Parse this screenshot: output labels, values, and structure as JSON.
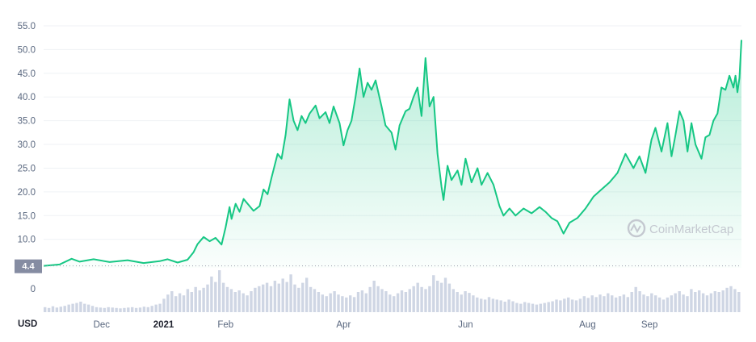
{
  "watermark": "CoinMarketCap",
  "currency_label": "USD",
  "colors": {
    "line": "#16c784",
    "area_top": "#16c784",
    "grid": "#eff2f5",
    "volume_bar": "#cfd6e4",
    "badge": "#858ca2"
  },
  "chart_data": {
    "type": "area",
    "title": "",
    "xlabel": "",
    "ylabel": "",
    "ylim": [
      4.0,
      55.0
    ],
    "yticks": [
      "55.0",
      "50.0",
      "45.0",
      "40.0",
      "35.0",
      "30.0",
      "25.0",
      "20.0",
      "15.0",
      "10.0"
    ],
    "current_price_label": "4.4",
    "x_tick_labels": [
      {
        "label": "Dec",
        "bold": false,
        "date": "2020-12-01"
      },
      {
        "label": "2021",
        "bold": true,
        "date": "2021-01-01"
      },
      {
        "label": "Feb",
        "bold": false,
        "date": "2021-02-01"
      },
      {
        "label": "Apr",
        "bold": false,
        "date": "2021-04-01"
      },
      {
        "label": "Jun",
        "bold": false,
        "date": "2021-06-01"
      },
      {
        "label": "Aug",
        "bold": false,
        "date": "2021-08-01"
      },
      {
        "label": "Sep",
        "bold": false,
        "date": "2021-09-01"
      }
    ],
    "x_start": "2020-11-02",
    "x_end": "2021-10-17",
    "series": [
      {
        "points": [
          [
            "2020-11-02",
            4.4
          ],
          [
            "2020-11-10",
            4.7
          ],
          [
            "2020-11-16",
            5.9
          ],
          [
            "2020-11-20",
            5.3
          ],
          [
            "2020-11-27",
            5.8
          ],
          [
            "2020-12-05",
            5.2
          ],
          [
            "2020-12-14",
            5.6
          ],
          [
            "2020-12-22",
            5.0
          ],
          [
            "2020-12-30",
            5.4
          ],
          [
            "2021-01-03",
            5.8
          ],
          [
            "2021-01-08",
            5.1
          ],
          [
            "2021-01-13",
            5.7
          ],
          [
            "2021-01-16",
            7.3
          ],
          [
            "2021-01-18",
            9.0
          ],
          [
            "2021-01-21",
            10.5
          ],
          [
            "2021-01-24",
            9.6
          ],
          [
            "2021-01-27",
            10.3
          ],
          [
            "2021-01-30",
            8.9
          ],
          [
            "2021-02-01",
            12.5
          ],
          [
            "2021-02-03",
            16.8
          ],
          [
            "2021-02-04",
            14.3
          ],
          [
            "2021-02-06",
            17.5
          ],
          [
            "2021-02-08",
            15.8
          ],
          [
            "2021-02-10",
            18.5
          ],
          [
            "2021-02-13",
            17.0
          ],
          [
            "2021-02-15",
            16.0
          ],
          [
            "2021-02-18",
            17.0
          ],
          [
            "2021-02-20",
            20.5
          ],
          [
            "2021-02-22",
            19.5
          ],
          [
            "2021-02-24",
            23.0
          ],
          [
            "2021-02-27",
            28.0
          ],
          [
            "2021-03-01",
            27.0
          ],
          [
            "2021-03-03",
            32.0
          ],
          [
            "2021-03-05",
            39.5
          ],
          [
            "2021-03-07",
            35.0
          ],
          [
            "2021-03-09",
            33.0
          ],
          [
            "2021-03-11",
            36.0
          ],
          [
            "2021-03-13",
            34.5
          ],
          [
            "2021-03-15",
            36.5
          ],
          [
            "2021-03-18",
            38.2
          ],
          [
            "2021-03-20",
            35.5
          ],
          [
            "2021-03-23",
            36.8
          ],
          [
            "2021-03-25",
            34.5
          ],
          [
            "2021-03-27",
            38.0
          ],
          [
            "2021-03-30",
            34.5
          ],
          [
            "2021-04-01",
            29.8
          ],
          [
            "2021-04-03",
            33.0
          ],
          [
            "2021-04-05",
            35.0
          ],
          [
            "2021-04-07",
            40.0
          ],
          [
            "2021-04-09",
            46.0
          ],
          [
            "2021-04-11",
            40.0
          ],
          [
            "2021-04-13",
            43.0
          ],
          [
            "2021-04-15",
            41.5
          ],
          [
            "2021-04-17",
            43.5
          ],
          [
            "2021-04-20",
            38.0
          ],
          [
            "2021-04-22",
            34.0
          ],
          [
            "2021-04-25",
            32.5
          ],
          [
            "2021-04-27",
            28.9
          ],
          [
            "2021-04-29",
            34.0
          ],
          [
            "2021-05-02",
            37.0
          ],
          [
            "2021-05-04",
            37.5
          ],
          [
            "2021-05-06",
            40.0
          ],
          [
            "2021-05-08",
            42.0
          ],
          [
            "2021-05-10",
            36.0
          ],
          [
            "2021-05-12",
            48.2
          ],
          [
            "2021-05-14",
            38.0
          ],
          [
            "2021-05-16",
            40.0
          ],
          [
            "2021-05-18",
            28.0
          ],
          [
            "2021-05-20",
            21.0
          ],
          [
            "2021-05-21",
            18.3
          ],
          [
            "2021-05-23",
            25.5
          ],
          [
            "2021-05-25",
            22.5
          ],
          [
            "2021-05-28",
            24.5
          ],
          [
            "2021-05-30",
            21.5
          ],
          [
            "2021-06-01",
            27.0
          ],
          [
            "2021-06-04",
            22.0
          ],
          [
            "2021-06-07",
            25.0
          ],
          [
            "2021-06-09",
            21.5
          ],
          [
            "2021-06-12",
            24.0
          ],
          [
            "2021-06-15",
            21.5
          ],
          [
            "2021-06-18",
            17.0
          ],
          [
            "2021-06-20",
            15.0
          ],
          [
            "2021-06-23",
            16.5
          ],
          [
            "2021-06-26",
            15.0
          ],
          [
            "2021-06-30",
            16.5
          ],
          [
            "2021-07-04",
            15.5
          ],
          [
            "2021-07-08",
            16.8
          ],
          [
            "2021-07-11",
            15.8
          ],
          [
            "2021-07-14",
            14.5
          ],
          [
            "2021-07-17",
            13.8
          ],
          [
            "2021-07-20",
            11.2
          ],
          [
            "2021-07-23",
            13.5
          ],
          [
            "2021-07-27",
            14.5
          ],
          [
            "2021-07-31",
            16.5
          ],
          [
            "2021-08-04",
            19.0
          ],
          [
            "2021-08-08",
            20.5
          ],
          [
            "2021-08-12",
            22.0
          ],
          [
            "2021-08-16",
            24.0
          ],
          [
            "2021-08-20",
            28.0
          ],
          [
            "2021-08-22",
            26.5
          ],
          [
            "2021-08-24",
            25.0
          ],
          [
            "2021-08-27",
            27.5
          ],
          [
            "2021-08-30",
            24.0
          ],
          [
            "2021-09-02",
            31.0
          ],
          [
            "2021-09-04",
            33.5
          ],
          [
            "2021-09-07",
            28.5
          ],
          [
            "2021-09-10",
            34.5
          ],
          [
            "2021-09-12",
            27.5
          ],
          [
            "2021-09-14",
            32.0
          ],
          [
            "2021-09-16",
            37.0
          ],
          [
            "2021-09-18",
            35.0
          ],
          [
            "2021-09-20",
            28.5
          ],
          [
            "2021-09-22",
            34.5
          ],
          [
            "2021-09-24",
            30.0
          ],
          [
            "2021-09-27",
            27.0
          ],
          [
            "2021-09-29",
            31.5
          ],
          [
            "2021-10-01",
            32.0
          ],
          [
            "2021-10-03",
            35.0
          ],
          [
            "2021-10-05",
            36.5
          ],
          [
            "2021-10-07",
            42.0
          ],
          [
            "2021-10-09",
            41.5
          ],
          [
            "2021-10-11",
            44.5
          ],
          [
            "2021-10-13",
            42.0
          ],
          [
            "2021-10-14",
            44.5
          ],
          [
            "2021-10-15",
            41.0
          ],
          [
            "2021-10-16",
            44.0
          ],
          [
            "2021-10-17",
            52.0
          ]
        ]
      }
    ],
    "volume": {
      "ylim_label": "0",
      "relative_values": [
        0.12,
        0.1,
        0.14,
        0.11,
        0.13,
        0.15,
        0.18,
        0.2,
        0.22,
        0.25,
        0.2,
        0.18,
        0.15,
        0.12,
        0.11,
        0.1,
        0.12,
        0.11,
        0.1,
        0.09,
        0.1,
        0.11,
        0.12,
        0.1,
        0.11,
        0.13,
        0.12,
        0.15,
        0.18,
        0.2,
        0.32,
        0.42,
        0.5,
        0.38,
        0.45,
        0.4,
        0.55,
        0.48,
        0.6,
        0.52,
        0.58,
        0.66,
        0.85,
        0.72,
        1.0,
        0.7,
        0.6,
        0.55,
        0.48,
        0.52,
        0.45,
        0.4,
        0.5,
        0.58,
        0.62,
        0.66,
        0.7,
        0.62,
        0.75,
        0.68,
        0.8,
        0.72,
        0.9,
        0.66,
        0.58,
        0.7,
        0.82,
        0.6,
        0.55,
        0.48,
        0.42,
        0.38,
        0.45,
        0.5,
        0.42,
        0.38,
        0.35,
        0.4,
        0.36,
        0.48,
        0.52,
        0.45,
        0.6,
        0.75,
        0.62,
        0.55,
        0.5,
        0.42,
        0.38,
        0.45,
        0.52,
        0.48,
        0.55,
        0.62,
        0.7,
        0.6,
        0.55,
        0.62,
        0.88,
        0.75,
        0.7,
        0.82,
        0.68,
        0.55,
        0.48,
        0.42,
        0.5,
        0.46,
        0.4,
        0.35,
        0.32,
        0.3,
        0.36,
        0.32,
        0.3,
        0.28,
        0.25,
        0.3,
        0.26,
        0.22,
        0.2,
        0.24,
        0.22,
        0.2,
        0.18,
        0.2,
        0.22,
        0.24,
        0.26,
        0.3,
        0.28,
        0.32,
        0.35,
        0.3,
        0.28,
        0.32,
        0.38,
        0.34,
        0.4,
        0.36,
        0.42,
        0.38,
        0.45,
        0.4,
        0.35,
        0.38,
        0.42,
        0.36,
        0.48,
        0.6,
        0.5,
        0.42,
        0.38,
        0.45,
        0.4,
        0.35,
        0.3,
        0.35,
        0.4,
        0.45,
        0.5,
        0.42,
        0.38,
        0.55,
        0.48,
        0.52,
        0.45,
        0.4,
        0.45,
        0.5,
        0.48,
        0.52,
        0.58,
        0.62,
        0.55,
        0.48
      ]
    }
  }
}
